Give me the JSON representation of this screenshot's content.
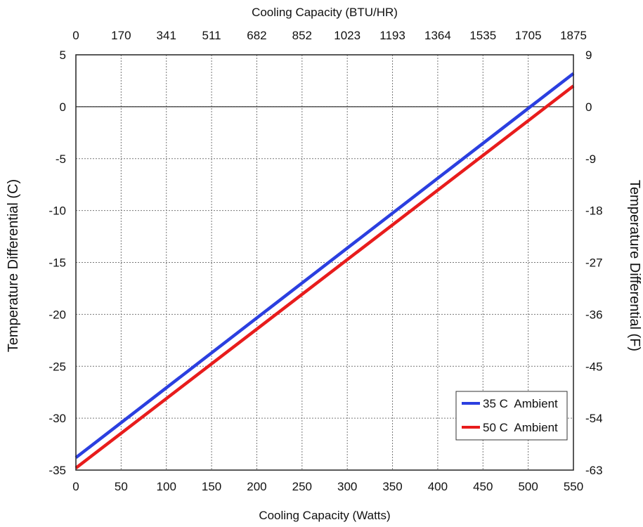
{
  "chart_data": {
    "type": "line",
    "x_axis": {
      "label": "Cooling Capacity (Watts)",
      "range": [
        0,
        550
      ],
      "ticks": [
        "0",
        "50",
        "100",
        "150",
        "200",
        "250",
        "300",
        "350",
        "400",
        "450",
        "500",
        "550"
      ]
    },
    "x2_axis": {
      "label": "Cooling Capacity (BTU/HR)",
      "ticks": [
        "0",
        "170",
        "341",
        "511",
        "682",
        "852",
        "1023",
        "1193",
        "1364",
        "1535",
        "1705",
        "1875"
      ]
    },
    "y_axis": {
      "label": "Temperature Differential (C)",
      "range": [
        -35,
        5
      ],
      "ticks": [
        "5",
        "0",
        "-5",
        "-10",
        "-15",
        "-20",
        "-25",
        "-30",
        "-35"
      ]
    },
    "y2_axis": {
      "label": "Temperature Differential (F)",
      "ticks": [
        "9",
        "0",
        "-9",
        "-18",
        "-27",
        "-36",
        "-45",
        "-54",
        "-63"
      ]
    },
    "grid": true,
    "legend_position": "bottom-right",
    "series": [
      {
        "name": "35 C  Ambient",
        "color": "#2b3fe0",
        "x": [
          0,
          550
        ],
        "y": [
          -33.8,
          3.2
        ]
      },
      {
        "name": "50 C  Ambient",
        "color": "#e81c1c",
        "x": [
          0,
          550
        ],
        "y": [
          -34.8,
          2.0
        ]
      }
    ]
  }
}
